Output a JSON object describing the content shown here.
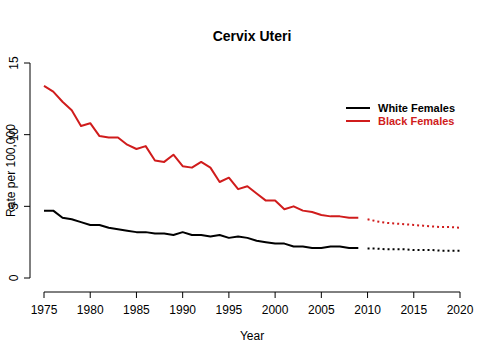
{
  "chart_data": {
    "type": "line",
    "title": "Cervix Uteri",
    "x_label": "Year",
    "y_label": "Rate per 100,000",
    "x": [
      1975,
      1976,
      1977,
      1978,
      1979,
      1980,
      1981,
      1982,
      1983,
      1984,
      1985,
      1986,
      1987,
      1988,
      1989,
      1990,
      1991,
      1992,
      1993,
      1994,
      1995,
      1996,
      1997,
      1998,
      1999,
      2000,
      2001,
      2002,
      2003,
      2004,
      2005,
      2006,
      2007,
      2008,
      2009,
      2010,
      2011,
      2012,
      2013,
      2014,
      2015,
      2016,
      2017,
      2018,
      2019,
      2020
    ],
    "series": [
      {
        "name": "White Females",
        "color": "#000000",
        "line_style": "solid",
        "values": [
          4.7,
          4.7,
          4.2,
          4.1,
          3.9,
          3.7,
          3.7,
          3.5,
          3.4,
          3.3,
          3.2,
          3.2,
          3.1,
          3.1,
          3.0,
          3.2,
          3.0,
          3.0,
          2.9,
          3.0,
          2.8,
          2.9,
          2.8,
          2.6,
          2.5,
          2.4,
          2.4,
          2.2,
          2.2,
          2.1,
          2.1,
          2.2,
          2.2,
          2.1,
          2.1,
          null,
          null,
          null,
          null,
          null,
          null,
          null,
          null,
          null,
          null,
          null
        ],
        "projection": [
          null,
          null,
          null,
          null,
          null,
          null,
          null,
          null,
          null,
          null,
          null,
          null,
          null,
          null,
          null,
          null,
          null,
          null,
          null,
          null,
          null,
          null,
          null,
          null,
          null,
          null,
          null,
          null,
          null,
          null,
          null,
          null,
          null,
          null,
          null,
          2.05,
          2.05,
          2.0,
          2.0,
          2.0,
          1.95,
          1.95,
          1.95,
          1.9,
          1.9,
          1.9
        ]
      },
      {
        "name": "Black Females",
        "color": "#d01c1c",
        "line_style": "solid",
        "values": [
          13.4,
          13.0,
          12.3,
          11.7,
          10.6,
          10.8,
          9.9,
          9.8,
          9.8,
          9.3,
          9.0,
          9.2,
          8.2,
          8.1,
          8.6,
          7.8,
          7.7,
          8.1,
          7.7,
          6.7,
          7.0,
          6.2,
          6.4,
          5.9,
          5.4,
          5.4,
          4.8,
          5.0,
          4.7,
          4.6,
          4.4,
          4.3,
          4.3,
          4.2,
          4.2,
          null,
          null,
          null,
          null,
          null,
          null,
          null,
          null,
          null,
          null,
          null
        ],
        "projection": [
          null,
          null,
          null,
          null,
          null,
          null,
          null,
          null,
          null,
          null,
          null,
          null,
          null,
          null,
          null,
          null,
          null,
          null,
          null,
          null,
          null,
          null,
          null,
          null,
          null,
          null,
          null,
          null,
          null,
          null,
          null,
          null,
          null,
          null,
          null,
          4.1,
          3.95,
          3.85,
          3.8,
          3.75,
          3.7,
          3.65,
          3.6,
          3.55,
          3.55,
          3.5
        ]
      }
    ],
    "xlim": [
      1975,
      2020
    ],
    "xticks": [
      1975,
      1980,
      1985,
      1990,
      1995,
      2000,
      2005,
      2010,
      2015,
      2020
    ],
    "ylim": [
      0,
      15
    ],
    "yticks": [
      0,
      5,
      10,
      15
    ],
    "grid": false,
    "legend": "topright"
  }
}
